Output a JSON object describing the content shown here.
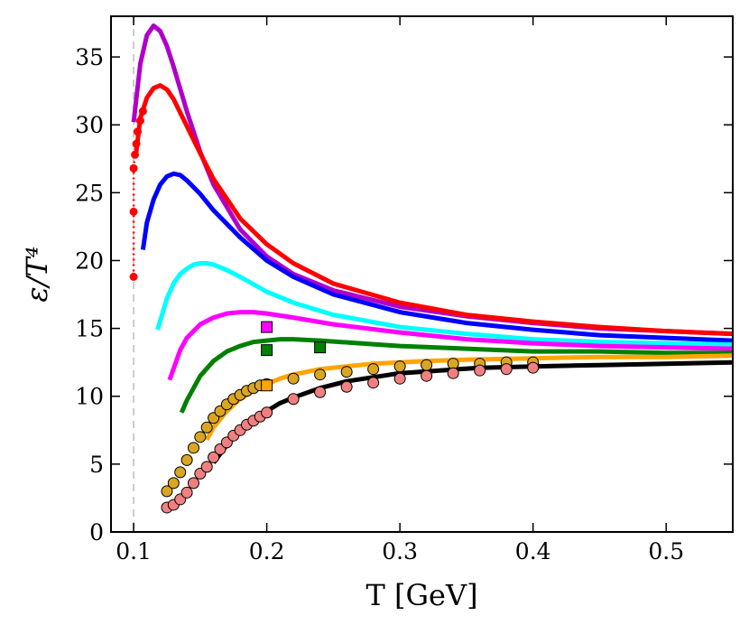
{
  "chart_data": {
    "type": "line",
    "xlabel": "T [GeV]",
    "ylabel": "ε/T⁴",
    "xlim": [
      0.083,
      0.55
    ],
    "ylim": [
      0,
      38
    ],
    "xticks": [
      0.1,
      0.2,
      0.3,
      0.4,
      0.5
    ],
    "xtick_labels": [
      "0.1",
      "0.2",
      "0.3",
      "0.4",
      "0.5"
    ],
    "yticks": [
      0,
      5,
      10,
      15,
      20,
      25,
      30,
      35
    ],
    "ytick_labels": [
      "0",
      "5",
      "10",
      "15",
      "20",
      "25",
      "30",
      "35"
    ],
    "grid": false,
    "reference_line": {
      "x": 0.1,
      "style": "dashed",
      "color": "#cccccc"
    },
    "series": [
      {
        "color": "#b000c8",
        "style": "line",
        "x": [
          0.1,
          0.105,
          0.11,
          0.115,
          0.12,
          0.125,
          0.13,
          0.14,
          0.15,
          0.16,
          0.18,
          0.2,
          0.22,
          0.25,
          0.3,
          0.35,
          0.4,
          0.45,
          0.5,
          0.55
        ],
        "y": [
          30.2,
          34.5,
          36.6,
          37.3,
          36.9,
          35.8,
          34.3,
          31.0,
          28.0,
          25.6,
          22.3,
          20.3,
          19.0,
          17.8,
          16.6,
          15.9,
          15.4,
          15.0,
          14.8,
          14.6
        ]
      },
      {
        "color": "#ff0000",
        "style": "line",
        "x": [
          0.102,
          0.105,
          0.11,
          0.115,
          0.12,
          0.125,
          0.13,
          0.14,
          0.15,
          0.16,
          0.18,
          0.2,
          0.22,
          0.25,
          0.3,
          0.35,
          0.4,
          0.45,
          0.5,
          0.55
        ],
        "y": [
          28.0,
          30.5,
          32.0,
          32.7,
          32.9,
          32.6,
          31.9,
          29.9,
          27.9,
          26.0,
          23.1,
          21.2,
          19.8,
          18.3,
          16.9,
          16.0,
          15.5,
          15.1,
          14.8,
          14.6
        ]
      },
      {
        "color": "#ff0000",
        "style": "dotted-markers",
        "x": [
          0.1,
          0.1,
          0.1,
          0.101,
          0.102,
          0.103,
          0.105,
          0.107
        ],
        "y": [
          18.8,
          23.6,
          26.8,
          27.8,
          28.6,
          29.5,
          30.3,
          31.0
        ]
      },
      {
        "color": "#0000ff",
        "style": "line",
        "x": [
          0.107,
          0.11,
          0.115,
          0.12,
          0.125,
          0.13,
          0.135,
          0.14,
          0.15,
          0.16,
          0.18,
          0.2,
          0.22,
          0.25,
          0.3,
          0.35,
          0.4,
          0.45,
          0.5,
          0.55
        ],
        "y": [
          20.8,
          22.8,
          24.5,
          25.6,
          26.2,
          26.4,
          26.3,
          25.9,
          24.9,
          23.7,
          21.7,
          20.0,
          18.8,
          17.5,
          16.2,
          15.4,
          14.9,
          14.5,
          14.3,
          14.1
        ]
      },
      {
        "color": "#00ffff",
        "style": "line",
        "x": [
          0.118,
          0.125,
          0.13,
          0.135,
          0.14,
          0.145,
          0.15,
          0.155,
          0.16,
          0.17,
          0.18,
          0.2,
          0.22,
          0.25,
          0.3,
          0.35,
          0.4,
          0.45,
          0.5,
          0.55
        ],
        "y": [
          14.9,
          17.2,
          18.3,
          19.0,
          19.4,
          19.7,
          19.8,
          19.8,
          19.7,
          19.3,
          18.8,
          17.7,
          16.9,
          16.0,
          15.1,
          14.6,
          14.2,
          14.0,
          13.9,
          13.8
        ]
      },
      {
        "color": "#ff00ff",
        "style": "line",
        "x": [
          0.127,
          0.135,
          0.14,
          0.15,
          0.16,
          0.17,
          0.18,
          0.19,
          0.2,
          0.22,
          0.25,
          0.3,
          0.35,
          0.4,
          0.45,
          0.5,
          0.55
        ],
        "y": [
          11.2,
          13.4,
          14.3,
          15.3,
          15.8,
          16.1,
          16.2,
          16.2,
          16.1,
          15.8,
          15.3,
          14.7,
          14.2,
          13.9,
          13.7,
          13.6,
          13.5
        ]
      },
      {
        "color": "#008000",
        "style": "line",
        "x": [
          0.136,
          0.14,
          0.15,
          0.16,
          0.17,
          0.18,
          0.19,
          0.2,
          0.21,
          0.22,
          0.24,
          0.27,
          0.3,
          0.35,
          0.4,
          0.45,
          0.5,
          0.55
        ],
        "y": [
          8.8,
          9.7,
          11.5,
          12.6,
          13.3,
          13.7,
          14.0,
          14.1,
          14.2,
          14.2,
          14.1,
          13.9,
          13.7,
          13.5,
          13.3,
          13.3,
          13.2,
          13.2
        ]
      },
      {
        "color": "#ffa500",
        "style": "line",
        "x": [
          0.155,
          0.16,
          0.17,
          0.18,
          0.19,
          0.2,
          0.21,
          0.22,
          0.24,
          0.26,
          0.28,
          0.3,
          0.32,
          0.35,
          0.4,
          0.45,
          0.5,
          0.55
        ],
        "y": [
          6.8,
          7.7,
          8.9,
          9.8,
          10.4,
          10.9,
          11.3,
          11.6,
          12.0,
          12.2,
          12.4,
          12.5,
          12.6,
          12.7,
          12.8,
          12.9,
          12.9,
          13.0
        ]
      },
      {
        "color": "#000000",
        "style": "line",
        "x": [
          0.16,
          0.17,
          0.18,
          0.19,
          0.2,
          0.21,
          0.22,
          0.24,
          0.26,
          0.28,
          0.3,
          0.33,
          0.36,
          0.4,
          0.45,
          0.5,
          0.55
        ],
        "y": [
          5.1,
          6.4,
          7.5,
          8.3,
          8.9,
          9.5,
          9.9,
          10.6,
          11.1,
          11.4,
          11.7,
          11.9,
          12.1,
          12.2,
          12.3,
          12.4,
          12.5
        ]
      },
      {
        "color": "#daa520",
        "style": "circles",
        "x": [
          0.125,
          0.13,
          0.135,
          0.14,
          0.145,
          0.15,
          0.155,
          0.16,
          0.165,
          0.17,
          0.175,
          0.18,
          0.185,
          0.19,
          0.195,
          0.2,
          0.22,
          0.24,
          0.26,
          0.28,
          0.3,
          0.32,
          0.34,
          0.36,
          0.38,
          0.4
        ],
        "y": [
          3.0,
          3.6,
          4.4,
          5.3,
          6.2,
          7.0,
          7.7,
          8.4,
          8.9,
          9.4,
          9.8,
          10.1,
          10.4,
          10.6,
          10.8,
          10.9,
          11.3,
          11.6,
          11.8,
          12.0,
          12.2,
          12.3,
          12.4,
          12.4,
          12.5,
          12.5
        ]
      },
      {
        "color": "#f08080",
        "style": "circles",
        "x": [
          0.125,
          0.13,
          0.135,
          0.14,
          0.145,
          0.15,
          0.155,
          0.16,
          0.165,
          0.17,
          0.175,
          0.18,
          0.185,
          0.19,
          0.195,
          0.2,
          0.22,
          0.24,
          0.26,
          0.28,
          0.3,
          0.32,
          0.34,
          0.36,
          0.38,
          0.4
        ],
        "y": [
          1.8,
          2.0,
          2.4,
          2.9,
          3.6,
          4.3,
          4.8,
          5.5,
          6.1,
          6.6,
          7.1,
          7.5,
          7.9,
          8.2,
          8.5,
          8.8,
          9.8,
          10.3,
          10.7,
          11.0,
          11.3,
          11.5,
          11.7,
          11.9,
          12.0,
          12.1
        ]
      },
      {
        "color": "#ff00ff",
        "style": "squares",
        "x": [
          0.2
        ],
        "y": [
          15.1
        ]
      },
      {
        "color": "#008000",
        "style": "squares",
        "x": [
          0.2,
          0.24
        ],
        "y": [
          13.4,
          13.6
        ]
      },
      {
        "color": "#ffa500",
        "style": "squares",
        "x": [
          0.2
        ],
        "y": [
          10.8
        ]
      }
    ]
  }
}
